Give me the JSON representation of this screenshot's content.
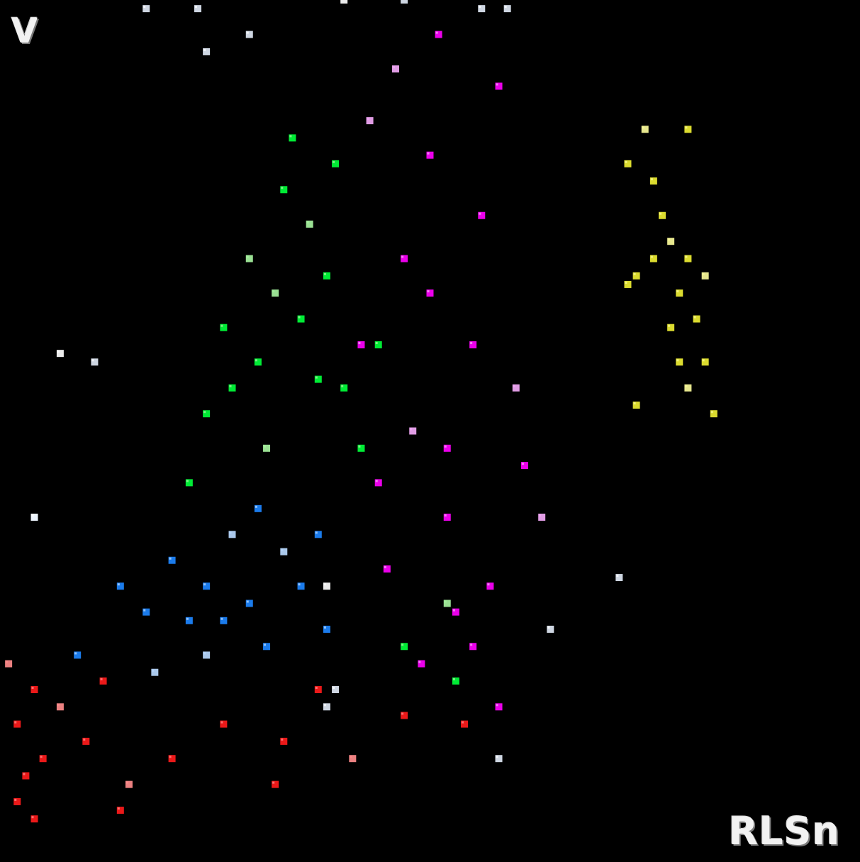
{
  "chart_data": {
    "type": "scatter",
    "title": "",
    "xlabel": "RLSn",
    "ylabel": "V",
    "grid": false,
    "legend": "none",
    "background": "#000000",
    "xlim": [
      0,
      100
    ],
    "ylim": [
      0,
      100
    ],
    "series": [
      {
        "color": "#ff00ff",
        "highlight": "#f3a9f7",
        "points": [
          [
            48,
            50
          ],
          [
            52,
            48
          ],
          [
            47,
            70
          ],
          [
            55,
            60
          ],
          [
            50,
            82
          ],
          [
            46,
            92
          ],
          [
            58,
            90
          ],
          [
            52,
            40
          ],
          [
            50,
            66
          ],
          [
            44,
            44
          ],
          [
            60,
            55
          ],
          [
            57,
            32
          ],
          [
            53,
            29
          ],
          [
            61,
            46
          ],
          [
            42,
            60
          ],
          [
            43,
            86
          ],
          [
            45,
            34
          ],
          [
            49,
            23
          ],
          [
            55,
            25
          ],
          [
            58,
            18
          ],
          [
            63,
            40
          ],
          [
            56,
            75
          ],
          [
            51,
            96
          ]
        ]
      },
      {
        "color": "#00ff3a",
        "highlight": "#a7f3a0",
        "points": [
          [
            32,
            66
          ],
          [
            33,
            78
          ],
          [
            30,
            58
          ],
          [
            27,
            55
          ],
          [
            24,
            52
          ],
          [
            29,
            70
          ],
          [
            34,
            84
          ],
          [
            38,
            68
          ],
          [
            37,
            56
          ],
          [
            22,
            44
          ],
          [
            31,
            48
          ],
          [
            26,
            62
          ],
          [
            35,
            63
          ],
          [
            40,
            55
          ],
          [
            42,
            48
          ],
          [
            36,
            74
          ],
          [
            44,
            60
          ],
          [
            39,
            81
          ],
          [
            47,
            25
          ],
          [
            53,
            21
          ],
          [
            52,
            30
          ]
        ]
      },
      {
        "color": "#1d86ff",
        "highlight": "#b9d9ff",
        "points": [
          [
            27,
            38
          ],
          [
            24,
            32
          ],
          [
            29,
            30
          ],
          [
            22,
            28
          ],
          [
            30,
            41
          ],
          [
            33,
            36
          ],
          [
            20,
            35
          ],
          [
            26,
            28
          ],
          [
            35,
            32
          ],
          [
            31,
            25
          ],
          [
            24,
            24
          ],
          [
            17,
            29
          ],
          [
            14,
            32
          ],
          [
            37,
            38
          ],
          [
            38,
            27
          ],
          [
            18,
            22
          ],
          [
            9,
            24
          ],
          [
            4,
            40
          ]
        ]
      },
      {
        "color": "#ff1b1b",
        "highlight": "#ff8c8c",
        "points": [
          [
            1,
            23
          ],
          [
            2,
            16
          ],
          [
            3,
            10
          ],
          [
            4,
            20
          ],
          [
            5,
            12
          ],
          [
            7,
            18
          ],
          [
            10,
            14
          ],
          [
            12,
            21
          ],
          [
            2,
            7
          ],
          [
            4,
            5
          ],
          [
            15,
            9
          ],
          [
            20,
            12
          ],
          [
            26,
            16
          ],
          [
            33,
            14
          ],
          [
            37,
            20
          ],
          [
            41,
            12
          ],
          [
            47,
            17
          ],
          [
            32,
            9
          ],
          [
            14,
            6
          ],
          [
            54,
            16
          ]
        ]
      },
      {
        "color": "#eeee33",
        "highlight": "#fbfb9a",
        "points": [
          [
            75,
            85
          ],
          [
            80,
            85
          ],
          [
            73,
            81
          ],
          [
            76,
            79
          ],
          [
            77,
            75
          ],
          [
            78,
            72
          ],
          [
            80,
            70
          ],
          [
            76,
            70
          ],
          [
            74,
            68
          ],
          [
            79,
            66
          ],
          [
            82,
            68
          ],
          [
            73,
            67
          ],
          [
            81,
            63
          ],
          [
            78,
            62
          ],
          [
            82,
            58
          ],
          [
            80,
            55
          ],
          [
            74,
            53
          ],
          [
            83,
            52
          ],
          [
            79,
            58
          ]
        ]
      },
      {
        "color": "#dfe8f5",
        "highlight": "#ffffff",
        "points": [
          [
            7,
            59
          ],
          [
            11,
            58
          ],
          [
            23,
            99
          ],
          [
            17,
            99
          ],
          [
            29,
            96
          ],
          [
            40,
            100
          ],
          [
            47,
            100
          ],
          [
            56,
            99
          ],
          [
            59,
            99
          ],
          [
            24,
            94
          ],
          [
            4,
            40
          ],
          [
            38,
            18
          ],
          [
            39,
            20
          ],
          [
            72,
            33
          ],
          [
            64,
            27
          ],
          [
            38,
            32
          ],
          [
            58,
            12
          ]
        ]
      }
    ]
  }
}
